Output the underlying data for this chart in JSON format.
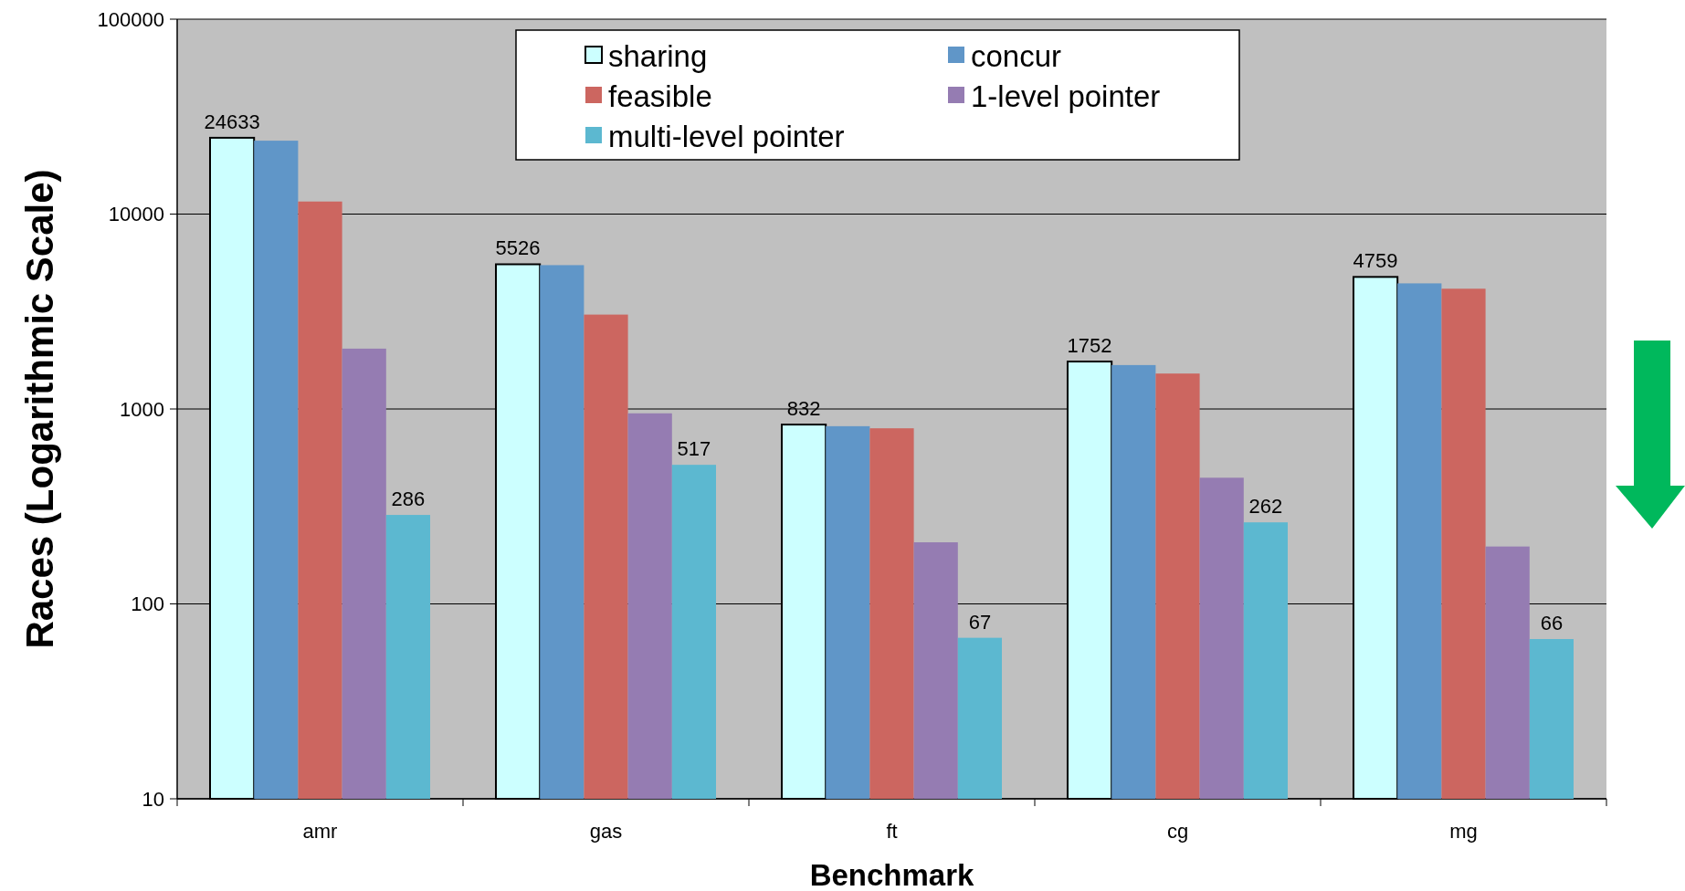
{
  "chart_data": {
    "type": "bar",
    "xlabel": "Benchmark",
    "ylabel": "Races (Logarithmic Scale)",
    "categories": [
      "amr",
      "gas",
      "ft",
      "cg",
      "mg"
    ],
    "series": [
      {
        "name": "sharing",
        "color": "#ccffff",
        "values": [
          24633,
          5526,
          832,
          1752,
          4759
        ],
        "value_labels": [
          "24633",
          "5526",
          "832",
          "1752",
          "4759"
        ]
      },
      {
        "name": "concur",
        "color": "#6096c8",
        "values": [
          23800,
          5470,
          816,
          1680,
          4410
        ]
      },
      {
        "name": "feasible",
        "color": "#cc6660",
        "values": [
          11600,
          3050,
          796,
          1520,
          4140
        ]
      },
      {
        "name": "1-level pointer",
        "color": "#957cb2",
        "values": [
          2040,
          950,
          207,
          444,
          197
        ]
      },
      {
        "name": "multi-level pointer",
        "color": "#5cb8d0",
        "values": [
          286,
          517,
          67,
          262,
          66
        ],
        "value_labels": [
          "286",
          "517",
          "67",
          "262",
          "66"
        ]
      }
    ],
    "log": true,
    "ylim": [
      10,
      100000
    ],
    "yticks": [
      10,
      100,
      1000,
      10000,
      100000
    ],
    "grid": "y",
    "legend": "top"
  }
}
